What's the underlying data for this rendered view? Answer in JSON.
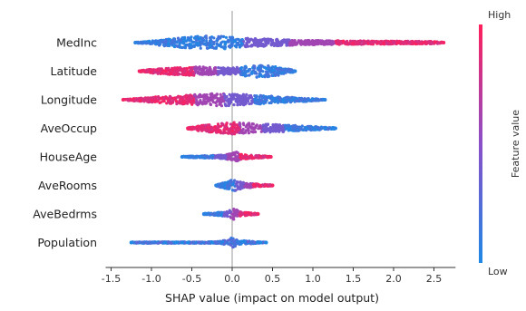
{
  "chart_data": {
    "type": "scatter",
    "subtype": "shap-beeswarm",
    "xlabel": "SHAP value (impact on model output)",
    "xlim": [
      -1.5,
      2.7
    ],
    "xticks": [
      -1.5,
      -1.0,
      -0.5,
      0.0,
      0.5,
      1.0,
      1.5,
      2.0,
      2.5
    ],
    "xtick_labels": [
      "-1.5",
      "-1.0",
      "-0.5",
      "0.0",
      "0.5",
      "1.0",
      "1.5",
      "2.0",
      "2.5"
    ],
    "colorbar": {
      "label": "Feature value",
      "high_label": "High",
      "low_label": "Low",
      "high_color": "#ff0052",
      "low_color": "#008bfb"
    },
    "features": [
      {
        "name": "MedInc",
        "min": -1.2,
        "max": 2.62,
        "left_color": "low",
        "right_color": "high",
        "density": [
          [
            -1.2,
            0.5
          ],
          [
            -1.1,
            1
          ],
          [
            -0.9,
            3
          ],
          [
            -0.6,
            6
          ],
          [
            -0.3,
            7.5
          ],
          [
            -0.1,
            7
          ],
          [
            0.1,
            5
          ],
          [
            0.3,
            4.5
          ],
          [
            0.6,
            3.5
          ],
          [
            1.0,
            2.5
          ],
          [
            1.5,
            2
          ],
          [
            2.0,
            1.8
          ],
          [
            2.5,
            1.4
          ],
          [
            2.62,
            0.6
          ]
        ]
      },
      {
        "name": "Latitude",
        "min": -1.15,
        "max": 0.78,
        "left_color": "high",
        "right_color": "low",
        "density": [
          [
            -1.15,
            0.6
          ],
          [
            -1.0,
            2.5
          ],
          [
            -0.7,
            4
          ],
          [
            -0.4,
            5
          ],
          [
            -0.2,
            4
          ],
          [
            0.0,
            3.5
          ],
          [
            0.2,
            6
          ],
          [
            0.35,
            7
          ],
          [
            0.55,
            5
          ],
          [
            0.78,
            1
          ]
        ]
      },
      {
        "name": "Longitude",
        "min": -1.35,
        "max": 1.15,
        "left_color": "high",
        "right_color": "low",
        "density": [
          [
            -1.35,
            0.5
          ],
          [
            -1.2,
            1.5
          ],
          [
            -0.9,
            3.5
          ],
          [
            -0.6,
            5
          ],
          [
            -0.3,
            6.5
          ],
          [
            -0.1,
            7
          ],
          [
            0.1,
            6
          ],
          [
            0.3,
            5
          ],
          [
            0.6,
            3.5
          ],
          [
            0.9,
            2
          ],
          [
            1.15,
            0.5
          ]
        ]
      },
      {
        "name": "AveOccup",
        "min": -0.55,
        "max": 1.28,
        "left_color": "high",
        "right_color": "low",
        "density": [
          [
            -0.55,
            0.8
          ],
          [
            -0.4,
            3
          ],
          [
            -0.2,
            5
          ],
          [
            0.0,
            6.5
          ],
          [
            0.15,
            6
          ],
          [
            0.3,
            5
          ],
          [
            0.6,
            4
          ],
          [
            0.9,
            2.5
          ],
          [
            1.28,
            0.8
          ]
        ]
      },
      {
        "name": "HouseAge",
        "min": -0.62,
        "max": 0.48,
        "left_color": "low",
        "right_color": "high",
        "density": [
          [
            -0.62,
            0.5
          ],
          [
            -0.5,
            1
          ],
          [
            -0.3,
            1.5
          ],
          [
            -0.1,
            2
          ],
          [
            0.0,
            4
          ],
          [
            0.05,
            6
          ],
          [
            0.1,
            3
          ],
          [
            0.2,
            2
          ],
          [
            0.35,
            1.5
          ],
          [
            0.48,
            0.6
          ]
        ]
      },
      {
        "name": "AveRooms",
        "min": -0.2,
        "max": 0.5,
        "left_color": "low",
        "right_color": "high",
        "density": [
          [
            -0.2,
            1
          ],
          [
            -0.1,
            3
          ],
          [
            0.0,
            6
          ],
          [
            0.05,
            7
          ],
          [
            0.1,
            4
          ],
          [
            0.2,
            2.5
          ],
          [
            0.35,
            1.5
          ],
          [
            0.5,
            0.6
          ]
        ]
      },
      {
        "name": "AveBedrms",
        "min": -0.35,
        "max": 0.32,
        "left_color": "low",
        "right_color": "high",
        "density": [
          [
            -0.35,
            0.8
          ],
          [
            -0.2,
            1.5
          ],
          [
            -0.05,
            3
          ],
          [
            0.0,
            7
          ],
          [
            0.05,
            5
          ],
          [
            0.15,
            2
          ],
          [
            0.32,
            0.6
          ]
        ]
      },
      {
        "name": "Population",
        "min": -1.25,
        "max": 0.42,
        "left_color": "low",
        "right_color": "low",
        "density": [
          [
            -0.3,
            0.8
          ],
          [
            -0.15,
            1.5
          ],
          [
            -0.05,
            3
          ],
          [
            0.0,
            6
          ],
          [
            0.05,
            4
          ],
          [
            0.15,
            2
          ],
          [
            0.3,
            1
          ],
          [
            0.42,
            0.5
          ]
        ],
        "outliers": [
          -1.25,
          -0.7,
          -0.62,
          -0.55,
          -0.25,
          0.35,
          0.42
        ]
      }
    ]
  }
}
